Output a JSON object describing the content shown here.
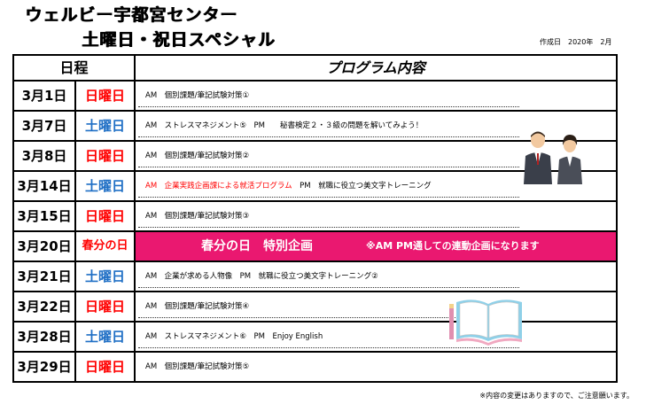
{
  "header": {
    "title_line1": "ウェルビー宇都宮センター",
    "title_line2": "土曜日・祝日スペシャル",
    "created": "作成日　2020年　2月"
  },
  "table": {
    "col_schedule": "日程",
    "col_program": "プログラム内容",
    "rows": [
      {
        "date": "3月1日",
        "day": "日曜日",
        "program": "AM　個別課題/筆記試験対策①"
      },
      {
        "date": "3月7日",
        "day": "土曜日",
        "program": "AM　ストレスマネジメント⑤　PM　　秘書検定２・３級の問題を解いてみよう！"
      },
      {
        "date": "3月8日",
        "day": "日曜日",
        "program": "AM　個別課題/筆記試験対策②"
      },
      {
        "date": "3月14日",
        "day": "土曜日",
        "program_red": "AM　企業実践企画課による就活プログラム",
        "program": "　PM　就職に役立つ美文字トレーニング"
      },
      {
        "date": "3月15日",
        "day": "日曜日",
        "program": "AM　個別課題/筆記試験対策③"
      },
      {
        "date": "3月20日",
        "day": "春分の日",
        "banner_main": "春分の日　特別企画",
        "banner_note": "※AM PM通しての連動企画になります"
      },
      {
        "date": "3月21日",
        "day": "土曜日",
        "program": "AM　企業が求める人物像　PM　就職に役立つ美文字トレーニング②"
      },
      {
        "date": "3月22日",
        "day": "日曜日",
        "program": "AM　個別課題/筆記試験対策④"
      },
      {
        "date": "3月28日",
        "day": "土曜日",
        "program": "AM　ストレスマネジメント⑥　PM　Enjoy English"
      },
      {
        "date": "3月29日",
        "day": "日曜日",
        "program": "AM　個別課題/筆記試験対策⑤"
      }
    ]
  },
  "footer": {
    "note": "※内容の変更はありますので、ご注意願います。"
  },
  "colors": {
    "sunday": "#ff0000",
    "saturday": "#1f6fc5",
    "banner": "#ea1870"
  },
  "icons": {
    "people": "business-people-icon",
    "book": "open-book-icon"
  }
}
